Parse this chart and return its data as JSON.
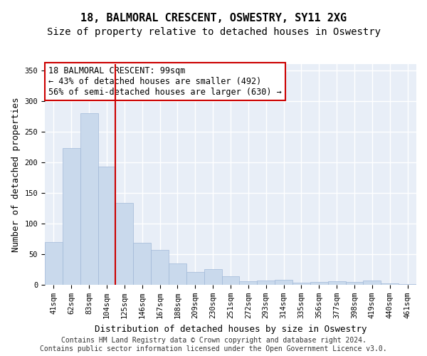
{
  "title1": "18, BALMORAL CRESCENT, OSWESTRY, SY11 2XG",
  "title2": "Size of property relative to detached houses in Oswestry",
  "xlabel": "Distribution of detached houses by size in Oswestry",
  "ylabel": "Number of detached properties",
  "categories": [
    "41sqm",
    "62sqm",
    "83sqm",
    "104sqm",
    "125sqm",
    "146sqm",
    "167sqm",
    "188sqm",
    "209sqm",
    "230sqm",
    "251sqm",
    "272sqm",
    "293sqm",
    "314sqm",
    "335sqm",
    "356sqm",
    "377sqm",
    "398sqm",
    "419sqm",
    "440sqm",
    "461sqm"
  ],
  "values": [
    70,
    223,
    280,
    193,
    134,
    69,
    57,
    35,
    21,
    25,
    14,
    6,
    7,
    8,
    3,
    5,
    6,
    5,
    7,
    2,
    1
  ],
  "bar_color": "#c9d9ec",
  "bar_edge_color": "#a0b8d8",
  "vline_x_index": 3,
  "vline_color": "#cc0000",
  "annotation_text": "18 BALMORAL CRESCENT: 99sqm\n← 43% of detached houses are smaller (492)\n56% of semi-detached houses are larger (630) →",
  "annotation_box_color": "white",
  "annotation_box_edge_color": "#cc0000",
  "ylim": [
    0,
    360
  ],
  "yticks": [
    0,
    50,
    100,
    150,
    200,
    250,
    300,
    350
  ],
  "background_color": "#e8eef7",
  "grid_color": "white",
  "footer": "Contains HM Land Registry data © Crown copyright and database right 2024.\nContains public sector information licensed under the Open Government Licence v3.0.",
  "title1_fontsize": 11,
  "title2_fontsize": 10,
  "xlabel_fontsize": 9,
  "ylabel_fontsize": 9,
  "tick_fontsize": 7.5,
  "annotation_fontsize": 8.5,
  "footer_fontsize": 7
}
